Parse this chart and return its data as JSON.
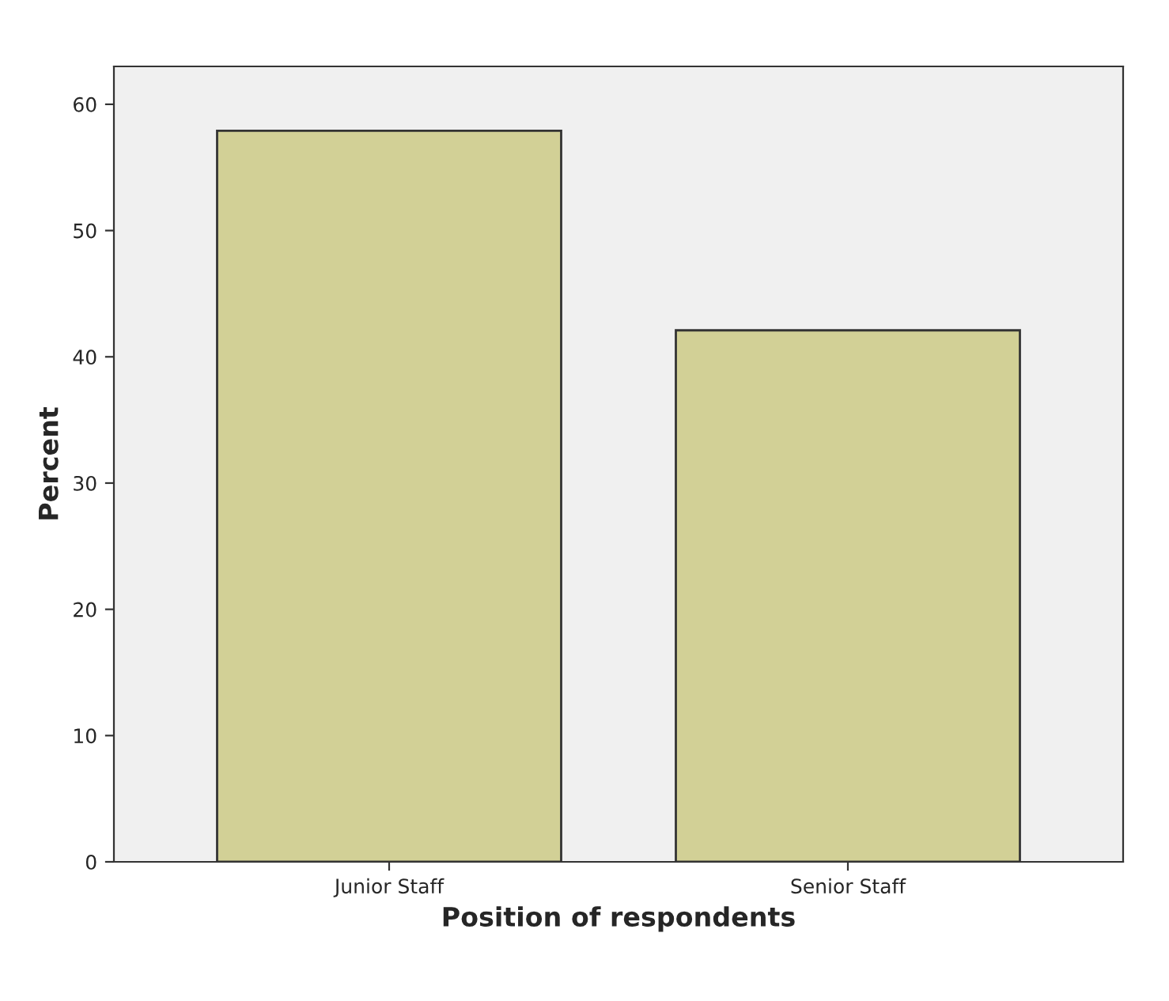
{
  "chart_data": {
    "type": "bar",
    "xlabel": "Position of respondents",
    "ylabel": "Percent",
    "categories": [
      "Junior Staff",
      "Senior Staff"
    ],
    "values": [
      57.9,
      42.1
    ],
    "color": "#d2d096",
    "ylim": [
      0,
      63
    ],
    "yticks": [
      0,
      10,
      20,
      30,
      40,
      50,
      60
    ],
    "grid": false
  }
}
